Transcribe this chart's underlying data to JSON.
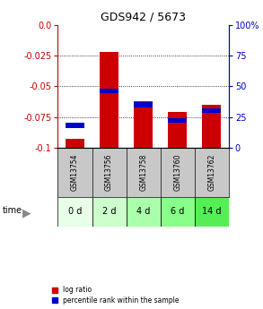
{
  "title": "GDS942 / 5673",
  "samples": [
    "GSM13754",
    "GSM13756",
    "GSM13758",
    "GSM13760",
    "GSM13762"
  ],
  "time_labels": [
    "0 d",
    "2 d",
    "4 d",
    "6 d",
    "14 d"
  ],
  "log_ratios": [
    -0.093,
    -0.022,
    -0.062,
    -0.071,
    -0.065
  ],
  "percentile_ranks": [
    18,
    46,
    35,
    22,
    30
  ],
  "ylim_left": [
    -0.1,
    0.0
  ],
  "ylim_right": [
    0,
    100
  ],
  "yticks_left": [
    0.0,
    -0.025,
    -0.05,
    -0.075,
    -0.1
  ],
  "yticks_right": [
    0,
    25,
    50,
    75,
    100
  ],
  "bar_color_red": "#cc0000",
  "bar_color_blue": "#0000cc",
  "bg_gray": "#c8c8c8",
  "time_row_colors": [
    "#e8ffe8",
    "#ccffcc",
    "#aaffaa",
    "#88ff88",
    "#55ee55"
  ],
  "left_axis_color": "#cc0000",
  "right_axis_color": "#0000cc",
  "bar_width": 0.55,
  "blue_bar_height": 0.004
}
